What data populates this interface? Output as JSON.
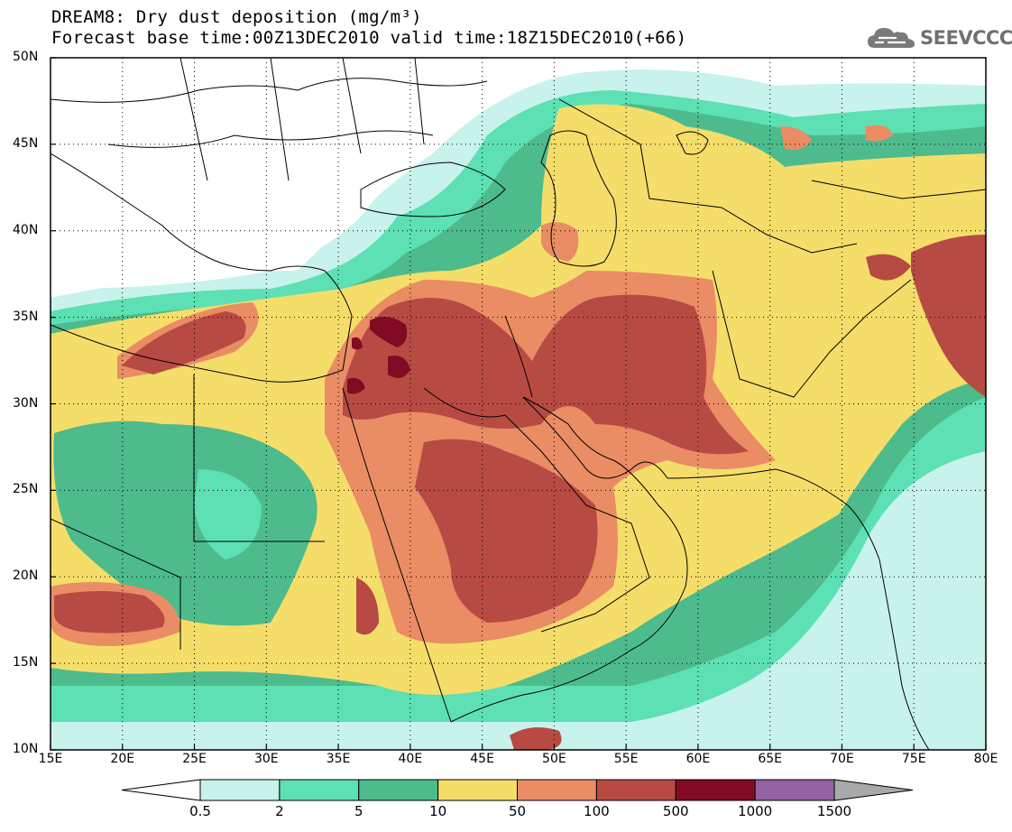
{
  "title": {
    "line1": "DREAM8: Dry dust deposition (mg/m³)",
    "line2": "Forecast base time:00Z13DEC2010 valid time:18Z15DEC2010(+66)"
  },
  "logo": {
    "text": "SEEVCCC",
    "icon": "cloud-icon"
  },
  "map": {
    "lon_min": 15,
    "lon_max": 80,
    "lat_min": 10,
    "lat_max": 50,
    "lon_ticks": [
      {
        "value": 15,
        "label": "15E"
      },
      {
        "value": 20,
        "label": "20E"
      },
      {
        "value": 25,
        "label": "25E"
      },
      {
        "value": 30,
        "label": "30E"
      },
      {
        "value": 35,
        "label": "35E"
      },
      {
        "value": 40,
        "label": "40E"
      },
      {
        "value": 45,
        "label": "45E"
      },
      {
        "value": 50,
        "label": "50E"
      },
      {
        "value": 55,
        "label": "55E"
      },
      {
        "value": 60,
        "label": "60E"
      },
      {
        "value": 65,
        "label": "65E"
      },
      {
        "value": 70,
        "label": "70E"
      },
      {
        "value": 75,
        "label": "75E"
      },
      {
        "value": 80,
        "label": "80E"
      }
    ],
    "lat_ticks": [
      {
        "value": 50,
        "label": "50N"
      },
      {
        "value": 45,
        "label": "45N"
      },
      {
        "value": 40,
        "label": "40N"
      },
      {
        "value": 35,
        "label": "35N"
      },
      {
        "value": 30,
        "label": "30N"
      },
      {
        "value": 25,
        "label": "25N"
      },
      {
        "value": 20,
        "label": "20N"
      },
      {
        "value": 15,
        "label": "15N"
      },
      {
        "value": 10,
        "label": "10N"
      }
    ],
    "grid": "dotted"
  },
  "colorbar": {
    "levels": [
      "0.5",
      "2",
      "5",
      "10",
      "50",
      "100",
      "500",
      "1000",
      "1500"
    ],
    "colors": [
      "#ffffff",
      "#c8f2ec",
      "#5ce0b4",
      "#4dbb8c",
      "#f5dd6a",
      "#ea8c64",
      "#b74b43",
      "#820b24",
      "#9462a2",
      "#a9a9a9"
    ]
  },
  "palette": {
    "c1": "#c8f2ec",
    "c2": "#5ce0b4",
    "c3": "#4dbb8c",
    "c4": "#f5dd6a",
    "c5": "#ea8c64",
    "c6": "#b74b43",
    "c7": "#820b24",
    "c8": "#9462a2"
  }
}
